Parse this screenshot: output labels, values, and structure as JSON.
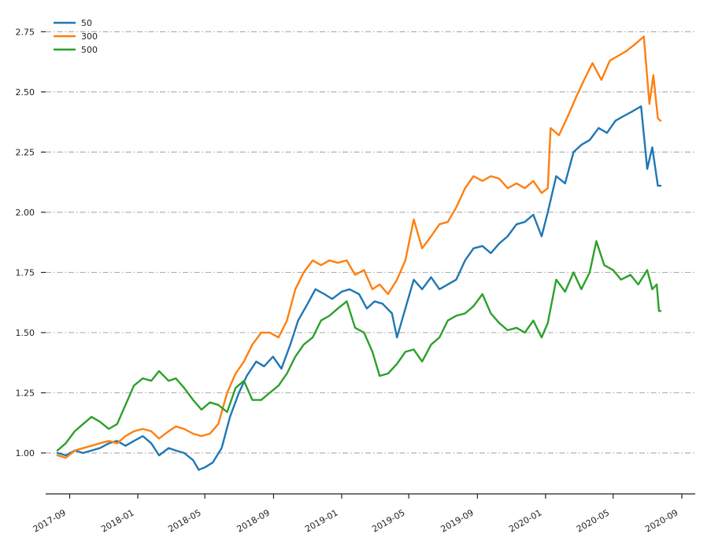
{
  "chart_data": {
    "type": "line",
    "title": "",
    "xlabel": "",
    "ylabel": "",
    "x_axis_type": "date",
    "xlim": [
      "2017-07-20",
      "2020-09-25"
    ],
    "ylim": [
      0.83,
      2.81
    ],
    "grid": true,
    "legend_position": "top-left",
    "x_ticks": [
      {
        "date": "2017-09-01",
        "label": "2017-09"
      },
      {
        "date": "2018-01-01",
        "label": "2018-01"
      },
      {
        "date": "2018-05-01",
        "label": "2018-05"
      },
      {
        "date": "2018-09-01",
        "label": "2018-09"
      },
      {
        "date": "2019-01-01",
        "label": "2019-01"
      },
      {
        "date": "2019-05-01",
        "label": "2019-05"
      },
      {
        "date": "2019-09-01",
        "label": "2019-09"
      },
      {
        "date": "2020-01-01",
        "label": "2020-01"
      },
      {
        "date": "2020-05-01",
        "label": "2020-05"
      },
      {
        "date": "2020-09-01",
        "label": "2020-09"
      }
    ],
    "y_ticks": [
      {
        "value": 1.0,
        "label": "1.00"
      },
      {
        "value": 1.25,
        "label": "1.25"
      },
      {
        "value": 1.5,
        "label": "1.50"
      },
      {
        "value": 1.75,
        "label": "1.75"
      },
      {
        "value": 2.0,
        "label": "2.00"
      },
      {
        "value": 2.25,
        "label": "2.25"
      },
      {
        "value": 2.5,
        "label": "2.50"
      },
      {
        "value": 2.75,
        "label": "2.75"
      }
    ],
    "series": [
      {
        "name": "50",
        "color": "#1f77b4",
        "points": [
          [
            "2017-08-10",
            1.0
          ],
          [
            "2017-08-25",
            0.99
          ],
          [
            "2017-09-10",
            1.01
          ],
          [
            "2017-09-25",
            1.0
          ],
          [
            "2017-10-10",
            1.01
          ],
          [
            "2017-10-25",
            1.02
          ],
          [
            "2017-11-10",
            1.04
          ],
          [
            "2017-11-25",
            1.05
          ],
          [
            "2017-12-10",
            1.03
          ],
          [
            "2017-12-25",
            1.05
          ],
          [
            "2018-01-10",
            1.07
          ],
          [
            "2018-01-25",
            1.04
          ],
          [
            "2018-02-08",
            0.99
          ],
          [
            "2018-02-25",
            1.02
          ],
          [
            "2018-03-10",
            1.01
          ],
          [
            "2018-03-25",
            1.0
          ],
          [
            "2018-04-10",
            0.97
          ],
          [
            "2018-04-20",
            0.93
          ],
          [
            "2018-05-01",
            0.94
          ],
          [
            "2018-05-15",
            0.96
          ],
          [
            "2018-05-31",
            1.02
          ],
          [
            "2018-06-15",
            1.15
          ],
          [
            "2018-07-01",
            1.25
          ],
          [
            "2018-07-15",
            1.32
          ],
          [
            "2018-08-01",
            1.38
          ],
          [
            "2018-08-15",
            1.36
          ],
          [
            "2018-08-31",
            1.4
          ],
          [
            "2018-09-15",
            1.35
          ],
          [
            "2018-10-01",
            1.45
          ],
          [
            "2018-10-15",
            1.55
          ],
          [
            "2018-11-01",
            1.62
          ],
          [
            "2018-11-15",
            1.68
          ],
          [
            "2018-12-01",
            1.66
          ],
          [
            "2018-12-15",
            1.64
          ],
          [
            "2019-01-01",
            1.67
          ],
          [
            "2019-01-15",
            1.68
          ],
          [
            "2019-02-01",
            1.66
          ],
          [
            "2019-02-15",
            1.6
          ],
          [
            "2019-03-01",
            1.63
          ],
          [
            "2019-03-15",
            1.62
          ],
          [
            "2019-04-01",
            1.58
          ],
          [
            "2019-04-10",
            1.48
          ],
          [
            "2019-04-25",
            1.6
          ],
          [
            "2019-05-10",
            1.72
          ],
          [
            "2019-05-25",
            1.68
          ],
          [
            "2019-06-10",
            1.73
          ],
          [
            "2019-06-25",
            1.68
          ],
          [
            "2019-07-10",
            1.7
          ],
          [
            "2019-07-25",
            1.72
          ],
          [
            "2019-08-10",
            1.8
          ],
          [
            "2019-08-25",
            1.85
          ],
          [
            "2019-09-10",
            1.86
          ],
          [
            "2019-09-25",
            1.83
          ],
          [
            "2019-10-10",
            1.87
          ],
          [
            "2019-10-25",
            1.9
          ],
          [
            "2019-11-10",
            1.95
          ],
          [
            "2019-11-25",
            1.96
          ],
          [
            "2019-12-10",
            1.99
          ],
          [
            "2019-12-25",
            1.9
          ],
          [
            "2020-01-05",
            2.0
          ],
          [
            "2020-01-20",
            2.15
          ],
          [
            "2020-02-05",
            2.12
          ],
          [
            "2020-02-20",
            2.25
          ],
          [
            "2020-03-05",
            2.28
          ],
          [
            "2020-03-20",
            2.3
          ],
          [
            "2020-04-05",
            2.35
          ],
          [
            "2020-04-20",
            2.33
          ],
          [
            "2020-05-05",
            2.38
          ],
          [
            "2020-05-20",
            2.4
          ],
          [
            "2020-06-05",
            2.42
          ],
          [
            "2020-06-20",
            2.44
          ],
          [
            "2020-07-01",
            2.18
          ],
          [
            "2020-07-10",
            2.27
          ],
          [
            "2020-07-20",
            2.11
          ],
          [
            "2020-07-25",
            2.11
          ]
        ]
      },
      {
        "name": "300",
        "color": "#ff7f0e",
        "points": [
          [
            "2017-08-10",
            0.99
          ],
          [
            "2017-08-25",
            0.98
          ],
          [
            "2017-09-10",
            1.01
          ],
          [
            "2017-09-25",
            1.02
          ],
          [
            "2017-10-10",
            1.03
          ],
          [
            "2017-10-25",
            1.04
          ],
          [
            "2017-11-10",
            1.05
          ],
          [
            "2017-11-25",
            1.04
          ],
          [
            "2017-12-10",
            1.07
          ],
          [
            "2017-12-25",
            1.09
          ],
          [
            "2018-01-10",
            1.1
          ],
          [
            "2018-01-25",
            1.09
          ],
          [
            "2018-02-08",
            1.06
          ],
          [
            "2018-02-25",
            1.09
          ],
          [
            "2018-03-10",
            1.11
          ],
          [
            "2018-03-25",
            1.1
          ],
          [
            "2018-04-10",
            1.08
          ],
          [
            "2018-04-25",
            1.07
          ],
          [
            "2018-05-10",
            1.08
          ],
          [
            "2018-05-25",
            1.12
          ],
          [
            "2018-06-10",
            1.25
          ],
          [
            "2018-06-25",
            1.33
          ],
          [
            "2018-07-10",
            1.38
          ],
          [
            "2018-07-25",
            1.45
          ],
          [
            "2018-08-10",
            1.5
          ],
          [
            "2018-08-25",
            1.5
          ],
          [
            "2018-09-10",
            1.48
          ],
          [
            "2018-09-25",
            1.55
          ],
          [
            "2018-10-10",
            1.68
          ],
          [
            "2018-10-25",
            1.75
          ],
          [
            "2018-11-10",
            1.8
          ],
          [
            "2018-11-25",
            1.78
          ],
          [
            "2018-12-10",
            1.8
          ],
          [
            "2018-12-25",
            1.79
          ],
          [
            "2019-01-10",
            1.8
          ],
          [
            "2019-01-25",
            1.74
          ],
          [
            "2019-02-10",
            1.76
          ],
          [
            "2019-02-25",
            1.68
          ],
          [
            "2019-03-10",
            1.7
          ],
          [
            "2019-03-25",
            1.66
          ],
          [
            "2019-04-10",
            1.72
          ],
          [
            "2019-04-25",
            1.8
          ],
          [
            "2019-05-10",
            1.97
          ],
          [
            "2019-05-25",
            1.85
          ],
          [
            "2019-06-10",
            1.9
          ],
          [
            "2019-06-25",
            1.95
          ],
          [
            "2019-07-10",
            1.96
          ],
          [
            "2019-07-25",
            2.02
          ],
          [
            "2019-08-10",
            2.1
          ],
          [
            "2019-08-25",
            2.15
          ],
          [
            "2019-09-10",
            2.13
          ],
          [
            "2019-09-25",
            2.15
          ],
          [
            "2019-10-10",
            2.14
          ],
          [
            "2019-10-25",
            2.1
          ],
          [
            "2019-11-10",
            2.12
          ],
          [
            "2019-11-25",
            2.1
          ],
          [
            "2019-12-10",
            2.13
          ],
          [
            "2019-12-25",
            2.08
          ],
          [
            "2020-01-05",
            2.1
          ],
          [
            "2020-01-10",
            2.35
          ],
          [
            "2020-01-25",
            2.32
          ],
          [
            "2020-02-10",
            2.4
          ],
          [
            "2020-02-25",
            2.48
          ],
          [
            "2020-03-10",
            2.55
          ],
          [
            "2020-03-25",
            2.62
          ],
          [
            "2020-04-10",
            2.55
          ],
          [
            "2020-04-25",
            2.63
          ],
          [
            "2020-05-10",
            2.65
          ],
          [
            "2020-05-25",
            2.67
          ],
          [
            "2020-06-10",
            2.7
          ],
          [
            "2020-06-25",
            2.73
          ],
          [
            "2020-07-05",
            2.45
          ],
          [
            "2020-07-12",
            2.57
          ],
          [
            "2020-07-20",
            2.39
          ],
          [
            "2020-07-25",
            2.38
          ]
        ]
      },
      {
        "name": "500",
        "color": "#2ca02c",
        "points": [
          [
            "2017-08-10",
            1.01
          ],
          [
            "2017-08-25",
            1.04
          ],
          [
            "2017-09-10",
            1.09
          ],
          [
            "2017-09-25",
            1.12
          ],
          [
            "2017-10-10",
            1.15
          ],
          [
            "2017-10-25",
            1.13
          ],
          [
            "2017-11-10",
            1.1
          ],
          [
            "2017-11-25",
            1.12
          ],
          [
            "2017-12-10",
            1.2
          ],
          [
            "2017-12-25",
            1.28
          ],
          [
            "2018-01-10",
            1.31
          ],
          [
            "2018-01-25",
            1.3
          ],
          [
            "2018-02-08",
            1.34
          ],
          [
            "2018-02-25",
            1.3
          ],
          [
            "2018-03-10",
            1.31
          ],
          [
            "2018-03-25",
            1.27
          ],
          [
            "2018-04-10",
            1.22
          ],
          [
            "2018-04-25",
            1.18
          ],
          [
            "2018-05-10",
            1.21
          ],
          [
            "2018-05-25",
            1.2
          ],
          [
            "2018-06-10",
            1.17
          ],
          [
            "2018-06-25",
            1.27
          ],
          [
            "2018-07-10",
            1.3
          ],
          [
            "2018-07-25",
            1.22
          ],
          [
            "2018-08-10",
            1.22
          ],
          [
            "2018-08-25",
            1.25
          ],
          [
            "2018-09-10",
            1.28
          ],
          [
            "2018-09-25",
            1.33
          ],
          [
            "2018-10-10",
            1.4
          ],
          [
            "2018-10-25",
            1.45
          ],
          [
            "2018-11-10",
            1.48
          ],
          [
            "2018-11-25",
            1.55
          ],
          [
            "2018-12-10",
            1.57
          ],
          [
            "2018-12-25",
            1.6
          ],
          [
            "2019-01-10",
            1.63
          ],
          [
            "2019-01-25",
            1.52
          ],
          [
            "2019-02-10",
            1.5
          ],
          [
            "2019-02-25",
            1.42
          ],
          [
            "2019-03-10",
            1.32
          ],
          [
            "2019-03-25",
            1.33
          ],
          [
            "2019-04-10",
            1.37
          ],
          [
            "2019-04-25",
            1.42
          ],
          [
            "2019-05-10",
            1.43
          ],
          [
            "2019-05-25",
            1.38
          ],
          [
            "2019-06-10",
            1.45
          ],
          [
            "2019-06-25",
            1.48
          ],
          [
            "2019-07-10",
            1.55
          ],
          [
            "2019-07-25",
            1.57
          ],
          [
            "2019-08-10",
            1.58
          ],
          [
            "2019-08-25",
            1.61
          ],
          [
            "2019-09-10",
            1.66
          ],
          [
            "2019-09-25",
            1.58
          ],
          [
            "2019-10-10",
            1.54
          ],
          [
            "2019-10-25",
            1.51
          ],
          [
            "2019-11-10",
            1.52
          ],
          [
            "2019-11-25",
            1.5
          ],
          [
            "2019-12-10",
            1.55
          ],
          [
            "2019-12-25",
            1.48
          ],
          [
            "2020-01-05",
            1.54
          ],
          [
            "2020-01-20",
            1.72
          ],
          [
            "2020-02-05",
            1.67
          ],
          [
            "2020-02-20",
            1.75
          ],
          [
            "2020-03-05",
            1.68
          ],
          [
            "2020-03-20",
            1.75
          ],
          [
            "2020-04-01",
            1.88
          ],
          [
            "2020-04-15",
            1.78
          ],
          [
            "2020-05-01",
            1.76
          ],
          [
            "2020-05-15",
            1.72
          ],
          [
            "2020-06-01",
            1.74
          ],
          [
            "2020-06-15",
            1.7
          ],
          [
            "2020-07-01",
            1.76
          ],
          [
            "2020-07-10",
            1.68
          ],
          [
            "2020-07-18",
            1.7
          ],
          [
            "2020-07-22",
            1.59
          ],
          [
            "2020-07-25",
            1.59
          ]
        ]
      }
    ]
  }
}
